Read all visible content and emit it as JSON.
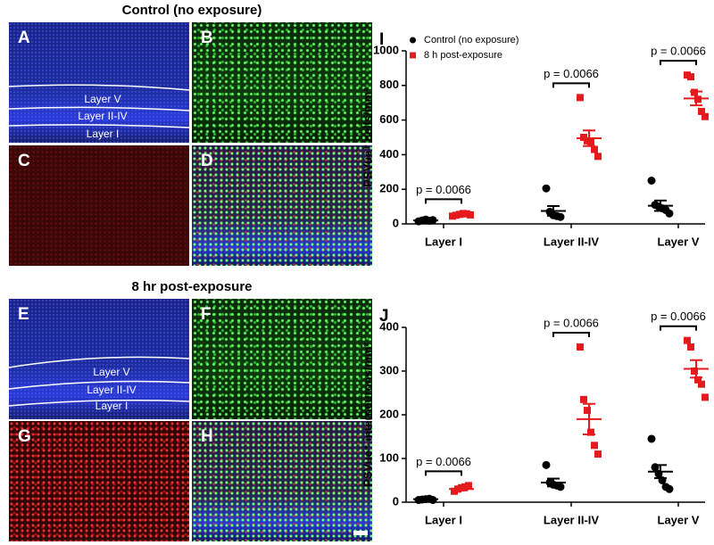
{
  "figure": {
    "sections": [
      {
        "title": "Control (no exposure)",
        "panels": [
          "A",
          "B",
          "C",
          "D"
        ],
        "layers": [
          "Layer V",
          "Layer II-IV",
          "Layer I"
        ]
      },
      {
        "title": "8 hr post-exposure",
        "panels": [
          "E",
          "F",
          "G",
          "H"
        ],
        "layers": [
          "Layer V",
          "Layer II-IV",
          "Layer I"
        ]
      }
    ]
  },
  "chart_data": [
    {
      "type": "dot",
      "panel": "I",
      "ylabel": "PSVue⁺ cells/mm²",
      "categories": [
        "Layer I",
        "Layer II-IV",
        "Layer V"
      ],
      "ylim": [
        0,
        1000
      ],
      "yticks": [
        0,
        200,
        400,
        600,
        800,
        1000
      ],
      "legend": "upper-left",
      "p_values": [
        "p = 0.0066",
        "p = 0.0066",
        "p = 0.0066"
      ],
      "series": [
        {
          "name": "Control (no exposure)",
          "color": "#000000",
          "marker": "circle",
          "values": [
            [
              15,
              20,
              25,
              18,
              22
            ],
            [
              205,
              70,
              50,
              45,
              40
            ],
            [
              250,
              110,
              100,
              90,
              80,
              60
            ]
          ],
          "means": [
            20,
            75,
            105
          ],
          "sem": [
            3,
            28,
            30
          ]
        },
        {
          "name": "8 h post-exposure",
          "color": "#e41a1c",
          "marker": "square",
          "values": [
            [
              45,
              50,
              55,
              60,
              58,
              52
            ],
            [
              730,
              500,
              480,
              470,
              430,
              390
            ],
            [
              860,
              850,
              760,
              720,
              650,
              620
            ]
          ],
          "means": [
            55,
            495,
            725
          ],
          "sem": [
            3,
            45,
            40
          ]
        }
      ]
    },
    {
      "type": "dot",
      "panel": "J",
      "ylabel": "PSVue⁺ interneurons/mm²",
      "categories": [
        "Layer I",
        "Layer II-IV",
        "Layer V"
      ],
      "ylim": [
        0,
        400
      ],
      "yticks": [
        0,
        100,
        200,
        300,
        400
      ],
      "p_values": [
        "p = 0.0066",
        "p = 0.0066",
        "p = 0.0066"
      ],
      "series": [
        {
          "name": "Control (no exposure)",
          "color": "#000000",
          "marker": "circle",
          "values": [
            [
              5,
              6,
              7,
              8,
              5
            ],
            [
              85,
              45,
              40,
              38,
              35
            ],
            [
              145,
              80,
              65,
              50,
              35,
              30
            ]
          ],
          "means": [
            7,
            45,
            70
          ],
          "sem": [
            1,
            9,
            15
          ]
        },
        {
          "name": "8 h post-exposure",
          "color": "#e41a1c",
          "marker": "square",
          "values": [
            [
              25,
              30,
              33,
              35,
              38
            ],
            [
              355,
              235,
              210,
              160,
              130,
              110
            ],
            [
              370,
              355,
              300,
              280,
              270,
              240
            ]
          ],
          "means": [
            30,
            190,
            305
          ],
          "sem": [
            3,
            35,
            20
          ]
        }
      ]
    }
  ]
}
